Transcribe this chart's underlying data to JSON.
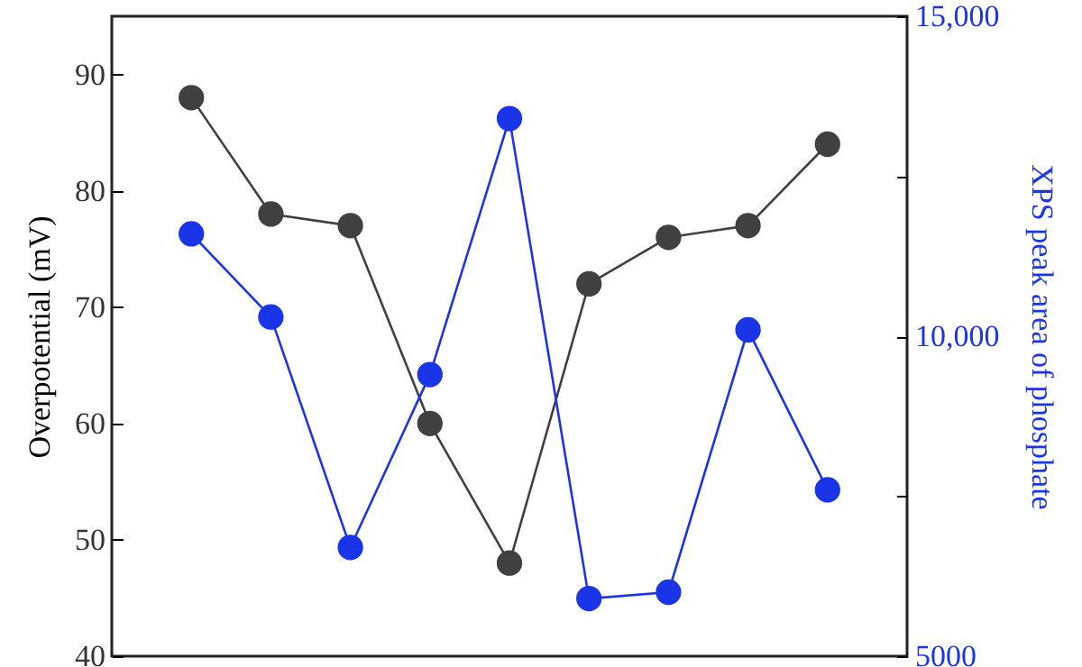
{
  "chart_data": {
    "type": "line",
    "ylabel": "Overpotential (mV)",
    "y2label": "XPS peak area of phosphate",
    "categories": [
      null,
      null,
      null,
      null,
      null,
      null,
      null,
      null,
      null
    ],
    "series": [
      {
        "color": "#404040",
        "values": [
          88,
          78,
          77,
          60,
          48,
          72,
          76,
          77,
          84
        ]
      },
      {
        "color": "#1a35e8",
        "axis": "y2",
        "values": [
          11600,
          10300,
          6700,
          9400,
          13400,
          5900,
          6000,
          10100,
          7600
        ]
      }
    ],
    "ylim": [
      40,
      95
    ],
    "yticks": [
      40,
      50,
      60,
      70,
      80,
      90
    ],
    "y2lim": [
      5000,
      15000
    ],
    "y2ticks": [
      {
        "value": 5000,
        "label": "5000"
      },
      {
        "value": 7500,
        "label": null
      },
      {
        "value": 10000,
        "label": "10,000"
      },
      {
        "value": 12500,
        "label": null
      },
      {
        "value": 15000,
        "label": "15,000"
      }
    ],
    "marker": "circle",
    "line_style": "solid",
    "grid": false
  }
}
